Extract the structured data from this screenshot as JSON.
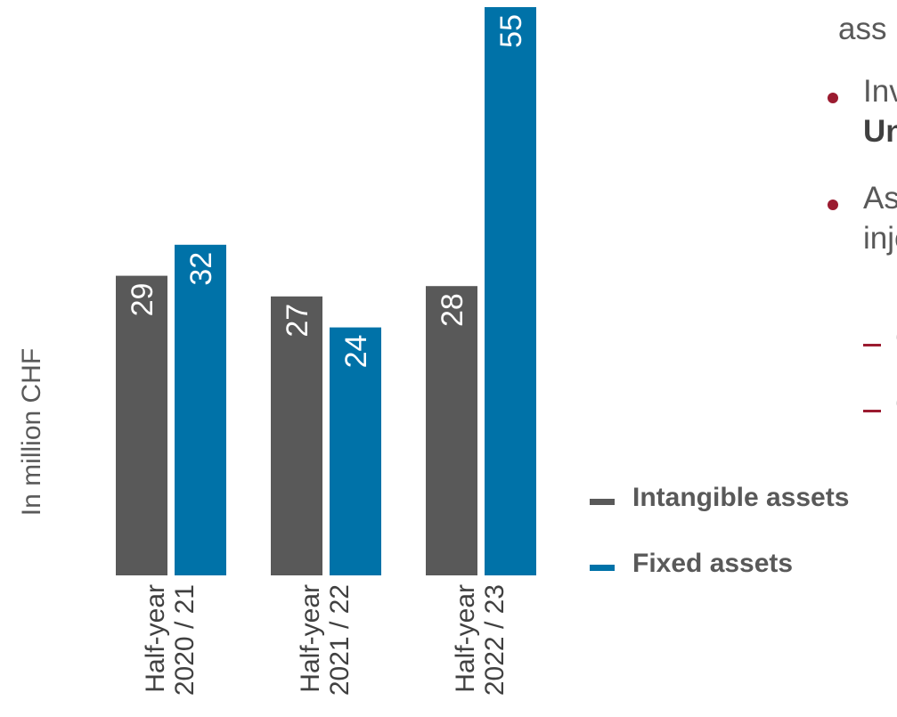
{
  "chart_data": {
    "type": "bar",
    "ylabel": "In million CHF",
    "categories": [
      [
        "Half-year",
        "2020 / 21"
      ],
      [
        "Half-year",
        "2021 / 22"
      ],
      [
        "Half-year",
        "2022 / 23"
      ]
    ],
    "series": [
      {
        "name": "Intangible assets",
        "color": "#595959",
        "values": [
          29,
          27,
          28
        ]
      },
      {
        "name": "Fixed assets",
        "color": "#0072a8",
        "values": [
          32,
          24,
          55
        ]
      }
    ],
    "ylim": [
      0,
      55
    ],
    "grid": false,
    "legend_position": "right"
  },
  "side_text": {
    "bullet_1_tail": "ass",
    "bullet_2_line1": "Inve",
    "bullet_2_line2": "Und",
    "bullet_3_line1": "Ass",
    "bullet_3_line2": "inje",
    "sub_1": "C",
    "sub_2": "C",
    "bullet_color": "#9b1b30"
  }
}
